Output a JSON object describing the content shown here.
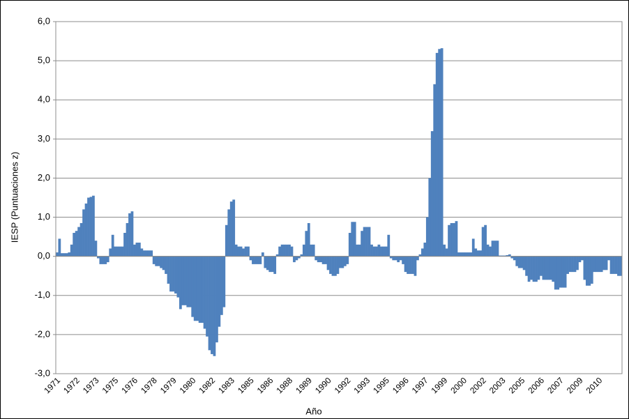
{
  "chart_data": {
    "type": "bar",
    "x_label": "Año",
    "y_label": "IESP (Puntuaciones z)",
    "color": "#4f81bd",
    "grid": true,
    "ylim": [
      -3,
      6
    ],
    "yticks": [
      {
        "value": -3,
        "label": "-3,0"
      },
      {
        "value": -2,
        "label": "-2,0"
      },
      {
        "value": -1,
        "label": "-1,0"
      },
      {
        "value": 0,
        "label": "0,0"
      },
      {
        "value": 1,
        "label": "1,0"
      },
      {
        "value": 2,
        "label": "2,0"
      },
      {
        "value": 3,
        "label": "3,0"
      },
      {
        "value": 4,
        "label": "4,0"
      },
      {
        "value": 5,
        "label": "5,0"
      },
      {
        "value": 6,
        "label": "6,0"
      }
    ],
    "categories": [
      "1971",
      null,
      null,
      null,
      null,
      null,
      null,
      null,
      "1972",
      null,
      null,
      null,
      null,
      null,
      null,
      null,
      "1973",
      null,
      null,
      null,
      null,
      null,
      null,
      null,
      "1975",
      null,
      null,
      null,
      null,
      null,
      null,
      null,
      "1976",
      null,
      null,
      null,
      null,
      null,
      null,
      null,
      "1978",
      null,
      null,
      null,
      null,
      null,
      null,
      null,
      "1979",
      null,
      null,
      null,
      null,
      null,
      null,
      null,
      "1980",
      null,
      null,
      null,
      null,
      null,
      null,
      null,
      "1982",
      null,
      null,
      null,
      null,
      null,
      null,
      null,
      "1983",
      null,
      null,
      null,
      null,
      null,
      null,
      null,
      "1985",
      null,
      null,
      null,
      null,
      null,
      null,
      null,
      "1986",
      null,
      null,
      null,
      null,
      null,
      null,
      null,
      "1988",
      null,
      null,
      null,
      null,
      null,
      null,
      null,
      "1989",
      null,
      null,
      null,
      null,
      null,
      null,
      null,
      "1990",
      null,
      null,
      null,
      null,
      null,
      null,
      null,
      "1992",
      null,
      null,
      null,
      null,
      null,
      null,
      null,
      "1993",
      null,
      null,
      null,
      null,
      null,
      null,
      null,
      "1995",
      null,
      null,
      null,
      null,
      null,
      null,
      null,
      "1996",
      null,
      null,
      null,
      null,
      null,
      null,
      null,
      "1997",
      null,
      null,
      null,
      null,
      null,
      null,
      null,
      "1999",
      null,
      null,
      null,
      null,
      null,
      null,
      null,
      "2000",
      null,
      null,
      null,
      null,
      null,
      null,
      null,
      "2002",
      null,
      null,
      null,
      null,
      null,
      null,
      null,
      "2003",
      null,
      null,
      null,
      null,
      null,
      null,
      null,
      "2005",
      null,
      null,
      null,
      null,
      null,
      null,
      null,
      "2006",
      null,
      null,
      null,
      null,
      null,
      null,
      null,
      "2007",
      null,
      null,
      null,
      null,
      null,
      null,
      null,
      "2009",
      null,
      null,
      null,
      null,
      null,
      null,
      null,
      "2010",
      null,
      null,
      null,
      null,
      null,
      null,
      null,
      null,
      null
    ],
    "values": [
      0.1,
      0.45,
      0.08,
      0.08,
      0.08,
      0.1,
      0.3,
      0.6,
      0.65,
      0.75,
      0.85,
      1.2,
      1.35,
      1.5,
      1.52,
      1.55,
      0.4,
      -0.05,
      -0.2,
      -0.2,
      -0.2,
      -0.15,
      0.2,
      0.55,
      0.25,
      0.25,
      0.25,
      0.25,
      0.6,
      0.85,
      1.1,
      1.15,
      0.3,
      0.35,
      0.35,
      0.2,
      0.15,
      0.15,
      0.15,
      0.15,
      -0.2,
      -0.25,
      -0.25,
      -0.3,
      -0.35,
      -0.45,
      -0.7,
      -0.9,
      -0.9,
      -0.95,
      -1.05,
      -1.35,
      -1.25,
      -1.25,
      -1.3,
      -1.3,
      -1.55,
      -1.65,
      -1.65,
      -1.7,
      -1.7,
      -1.85,
      -2.05,
      -2.4,
      -2.5,
      -2.55,
      -2.2,
      -1.8,
      -1.5,
      -1.3,
      0.8,
      1.2,
      1.4,
      1.45,
      0.3,
      0.25,
      0.25,
      0.2,
      0.25,
      0.25,
      -0.1,
      -0.2,
      -0.2,
      -0.2,
      -0.2,
      0.1,
      -0.3,
      -0.35,
      -0.4,
      -0.4,
      -0.45,
      0.05,
      0.25,
      0.3,
      0.3,
      0.3,
      0.3,
      0.25,
      -0.15,
      -0.1,
      -0.05,
      0.05,
      0.3,
      0.65,
      0.85,
      0.3,
      0.3,
      -0.1,
      -0.15,
      -0.15,
      -0.2,
      -0.2,
      -0.35,
      -0.45,
      -0.5,
      -0.5,
      -0.45,
      -0.3,
      -0.3,
      -0.25,
      -0.2,
      0.6,
      0.88,
      0.88,
      0.3,
      0.3,
      0.65,
      0.75,
      0.75,
      0.75,
      0.3,
      0.25,
      0.25,
      0.3,
      0.25,
      0.25,
      0.25,
      0.55,
      -0.05,
      -0.1,
      -0.1,
      -0.15,
      -0.1,
      -0.2,
      -0.4,
      -0.45,
      -0.45,
      -0.45,
      -0.5,
      -0.1,
      0.05,
      0.2,
      0.35,
      1.0,
      2.0,
      3.2,
      4.4,
      5.2,
      5.3,
      5.32,
      0.3,
      0.2,
      0.8,
      0.85,
      0.85,
      0.9,
      0.1,
      0.1,
      0.1,
      0.1,
      0.1,
      0.1,
      0.45,
      0.2,
      0.15,
      0.15,
      0.75,
      0.8,
      0.3,
      0.25,
      0.4,
      0.4,
      0.4,
      0.02,
      0.02,
      0.02,
      0.03,
      0.05,
      -0.05,
      -0.1,
      -0.25,
      -0.3,
      -0.3,
      -0.35,
      -0.5,
      -0.65,
      -0.6,
      -0.65,
      -0.65,
      -0.6,
      -0.5,
      -0.6,
      -0.6,
      -0.6,
      -0.6,
      -0.65,
      -0.85,
      -0.85,
      -0.8,
      -0.8,
      -0.8,
      -0.45,
      -0.4,
      -0.4,
      -0.4,
      -0.35,
      -0.15,
      -0.1,
      -0.6,
      -0.75,
      -0.75,
      -0.7,
      -0.4,
      -0.4,
      -0.4,
      -0.4,
      -0.35,
      -0.35,
      -0.1,
      -0.45,
      -0.45,
      -0.45,
      -0.5,
      -0.5
    ]
  }
}
